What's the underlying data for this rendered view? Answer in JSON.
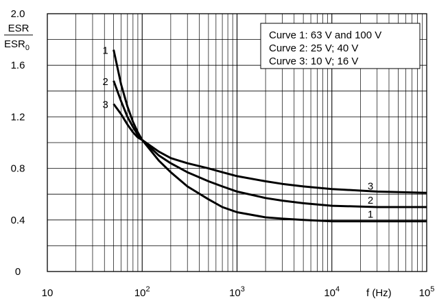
{
  "chart_data": {
    "type": "line",
    "x_scale": "log",
    "xlim": [
      10,
      100000
    ],
    "ylim": [
      0,
      2.0
    ],
    "grid": true,
    "legend_position": "top-right",
    "xlabel": "f (Hz)",
    "ylabel": {
      "numerator": "ESR",
      "denominator_base": "ESR",
      "denominator_sub": "0"
    },
    "x_ticks": [
      {
        "value": 10,
        "label": "10",
        "base": "10",
        "exp": ""
      },
      {
        "value": 100,
        "label": "10^2",
        "base": "10",
        "exp": "2"
      },
      {
        "value": 1000,
        "label": "10^3",
        "base": "10",
        "exp": "3"
      },
      {
        "value": 10000,
        "label": "10^4",
        "base": "10",
        "exp": "4"
      },
      {
        "value": 100000,
        "label": "10^5",
        "base": "10",
        "exp": "5"
      }
    ],
    "y_ticks": [
      {
        "value": 0,
        "label": "0"
      },
      {
        "value": 0.4,
        "label": "0.4"
      },
      {
        "value": 0.8,
        "label": "0.8"
      },
      {
        "value": 1.2,
        "label": "1.2"
      },
      {
        "value": 1.6,
        "label": "1.6"
      },
      {
        "value": 2.0,
        "label": "2.0"
      }
    ],
    "legend": [
      "Curve 1: 63 V and 100 V",
      "Curve 2: 25 V; 40 V",
      "Curve 3: 10 V; 16 V"
    ],
    "series": [
      {
        "name": "1",
        "label_start": "1",
        "label_end": "1",
        "x": [
          50,
          60,
          70,
          80,
          90,
          100,
          150,
          200,
          300,
          500,
          700,
          1000,
          2000,
          3000,
          5000,
          10000,
          30000,
          100000
        ],
        "y": [
          1.72,
          1.45,
          1.28,
          1.16,
          1.08,
          1.02,
          0.86,
          0.77,
          0.66,
          0.56,
          0.5,
          0.46,
          0.42,
          0.41,
          0.4,
          0.39,
          0.39,
          0.39
        ]
      },
      {
        "name": "2",
        "label_start": "2",
        "label_end": "2",
        "x": [
          50,
          60,
          70,
          80,
          90,
          100,
          150,
          200,
          300,
          500,
          700,
          1000,
          2000,
          3000,
          5000,
          10000,
          30000,
          100000
        ],
        "y": [
          1.48,
          1.32,
          1.2,
          1.12,
          1.06,
          1.02,
          0.9,
          0.84,
          0.77,
          0.7,
          0.66,
          0.62,
          0.57,
          0.55,
          0.53,
          0.51,
          0.5,
          0.5
        ]
      },
      {
        "name": "3",
        "label_start": "3",
        "label_end": "3",
        "x": [
          50,
          60,
          70,
          80,
          90,
          100,
          150,
          200,
          300,
          500,
          700,
          1000,
          2000,
          3000,
          5000,
          10000,
          30000,
          100000
        ],
        "y": [
          1.3,
          1.22,
          1.14,
          1.08,
          1.04,
          1.02,
          0.93,
          0.88,
          0.84,
          0.8,
          0.77,
          0.74,
          0.7,
          0.68,
          0.66,
          0.64,
          0.62,
          0.61
        ]
      }
    ]
  }
}
